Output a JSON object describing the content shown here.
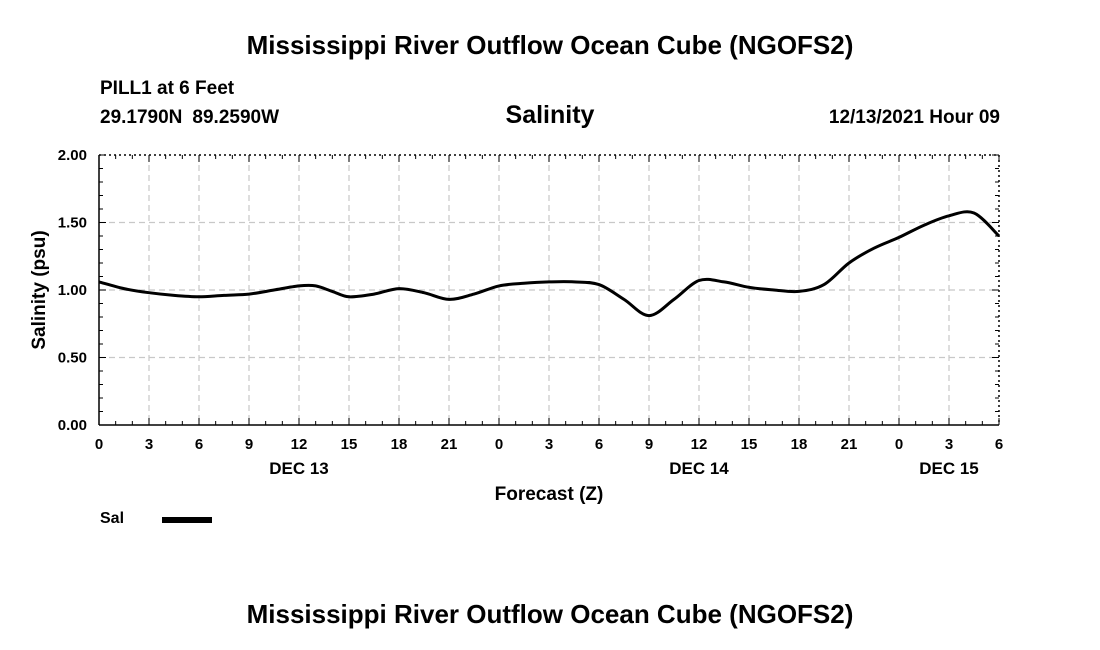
{
  "header": {
    "title": "Mississippi River Outflow Ocean Cube (NGOFS2)",
    "station": "PILL1 at 6 Feet",
    "lat": "29.1790N",
    "lon": "89.2590W",
    "subtitle": "Salinity",
    "datestamp": "12/13/2021 Hour 09"
  },
  "footer": {
    "title": "Mississippi River Outflow Ocean Cube (NGOFS2)"
  },
  "legend": {
    "label": "Sal",
    "color": "#000000"
  },
  "chart_data": {
    "type": "line",
    "title": "Salinity",
    "xlabel": "Forecast (Z)",
    "ylabel": "Salinity (psu)",
    "ylim": [
      0,
      2
    ],
    "yticks": [
      "0.00",
      "0.50",
      "1.00",
      "1.50",
      "2.00"
    ],
    "xlim": [
      0,
      54
    ],
    "x_ticks": [
      0,
      3,
      6,
      9,
      12,
      15,
      18,
      21,
      24,
      27,
      30,
      33,
      36,
      39,
      42,
      45,
      48,
      51,
      54
    ],
    "x_tick_labels": [
      "0",
      "3",
      "6",
      "9",
      "12",
      "15",
      "18",
      "21",
      "0",
      "3",
      "6",
      "9",
      "12",
      "15",
      "18",
      "21",
      "0",
      "3",
      "6"
    ],
    "day_labels": [
      {
        "x": 12,
        "label": "DEC 13"
      },
      {
        "x": 36,
        "label": "DEC 14"
      },
      {
        "x": 51,
        "label": "DEC 15"
      }
    ],
    "grid": true,
    "series": [
      {
        "name": "Sal",
        "x": [
          0,
          1.5,
          3,
          4.5,
          6,
          7.5,
          9,
          10.5,
          12,
          13,
          14,
          15,
          16.5,
          18,
          19.5,
          21,
          22.5,
          24,
          25.5,
          27,
          28.5,
          30,
          31.5,
          33,
          34.5,
          36,
          37.5,
          39,
          40.5,
          42,
          43.5,
          45,
          46.5,
          48,
          49.5,
          51,
          52.5,
          54
        ],
        "values": [
          1.06,
          1.01,
          0.98,
          0.96,
          0.95,
          0.96,
          0.97,
          1.0,
          1.03,
          1.03,
          0.99,
          0.95,
          0.97,
          1.01,
          0.98,
          0.93,
          0.97,
          1.03,
          1.05,
          1.06,
          1.06,
          1.04,
          0.93,
          0.81,
          0.93,
          1.07,
          1.06,
          1.02,
          1.0,
          0.99,
          1.04,
          1.2,
          1.31,
          1.39,
          1.48,
          1.55,
          1.57,
          1.4
        ]
      }
    ]
  }
}
